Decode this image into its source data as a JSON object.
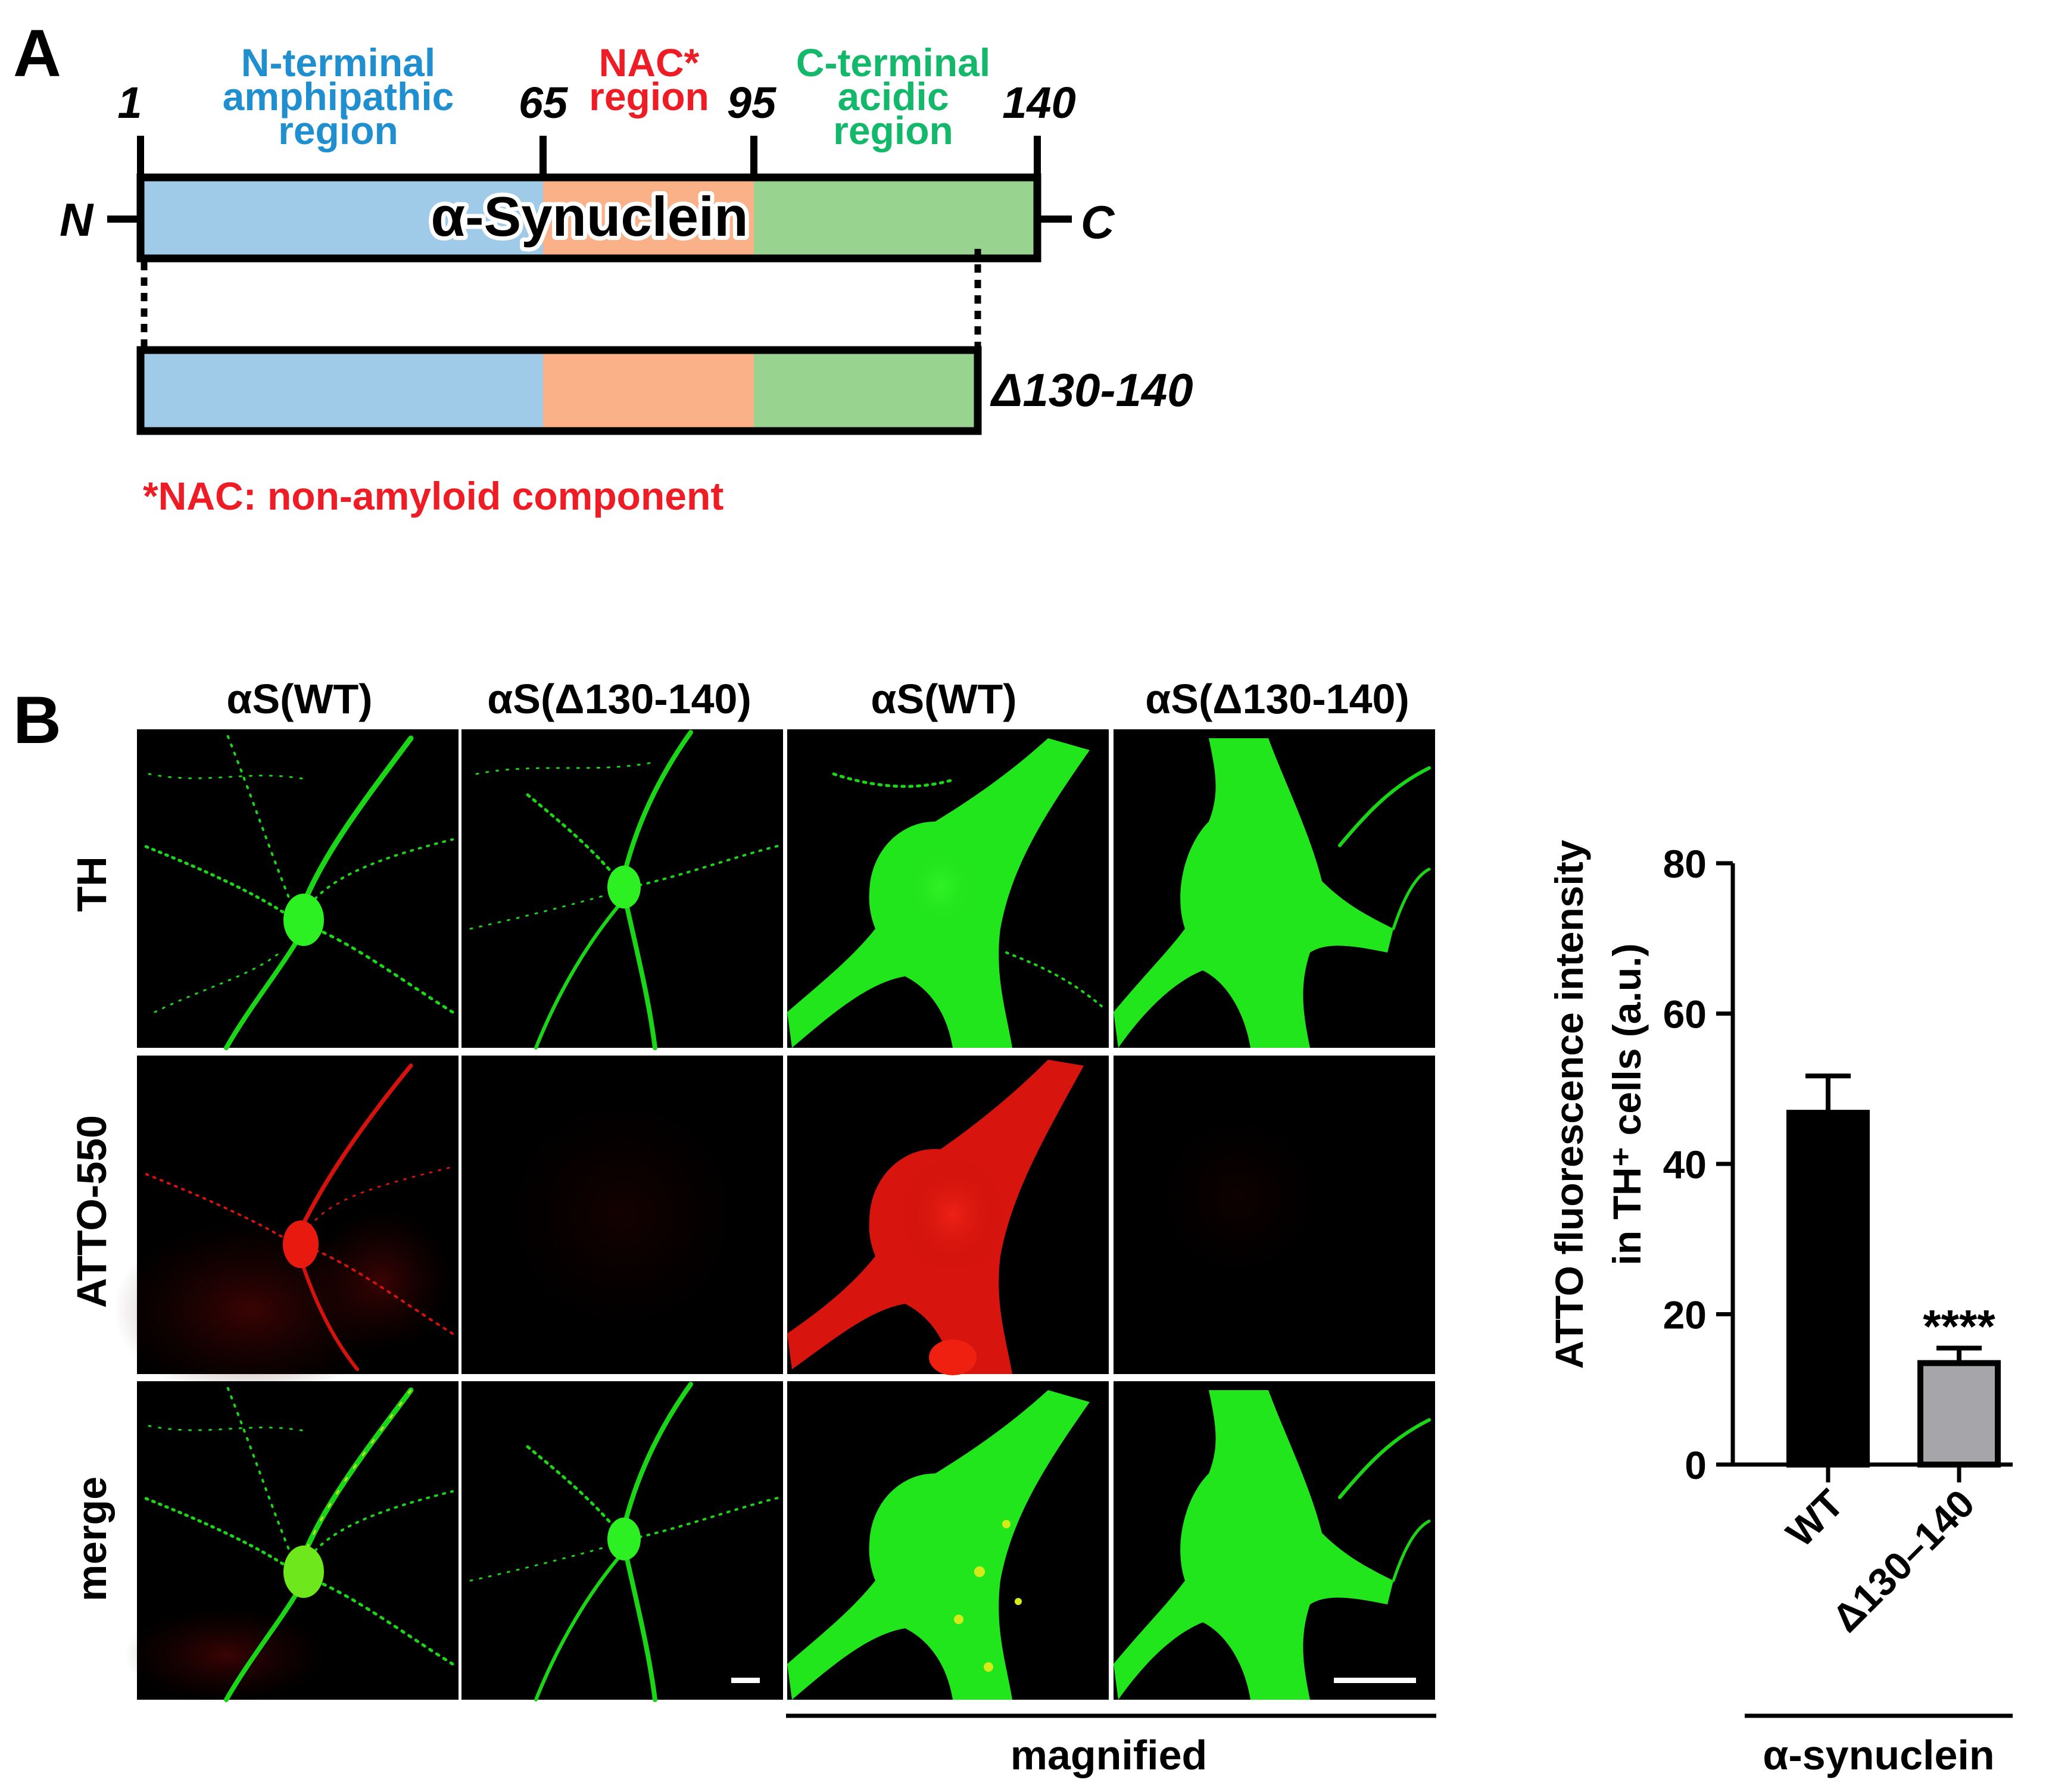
{
  "panel_a": {
    "letter": "A",
    "positions": [
      "1",
      "65",
      "95",
      "140"
    ],
    "regions": {
      "n_terminal": [
        "N-terminal",
        "amphipathic",
        "region"
      ],
      "nac": [
        "NAC*",
        "region"
      ],
      "c_terminal": [
        "C-terminal",
        "acidic",
        "region"
      ]
    },
    "protein_name": "α-Synuclein",
    "n_label": "N",
    "c_label": "C",
    "mutant_label": "Δ130-140",
    "footnote": "*NAC: non-amyloid component",
    "colors": {
      "n_terminal": "#9fcbe9",
      "nac": "#fbb187",
      "c_terminal": "#98d48f",
      "n_text": "#1f8fd0",
      "nac_text": "#ee1c24",
      "c_text": "#13b86b"
    }
  },
  "panel_b": {
    "letter": "B",
    "columns": [
      "αS(WT)",
      "αS(Δ130-140)",
      "αS(WT)",
      "αS(Δ130-140)"
    ],
    "rows": [
      "TH",
      "ATTO-550",
      "merge"
    ],
    "magnified_label": "magnified",
    "micrograph_colors": {
      "TH": "#22e61c",
      "ATTO-550": "#e3140e",
      "background": "#000000"
    }
  },
  "chart_data": {
    "type": "bar",
    "categories": [
      "WT",
      "Δ130–140"
    ],
    "values": [
      46.8,
      13.5
    ],
    "errors": [
      4.9,
      2.0
    ],
    "significance": [
      "",
      "****"
    ],
    "ylabel": "ATTO fluorescence intensity in TH⁺ cells (a.u.)",
    "ylabel_lines": [
      "ATTO fluorescence intensity",
      "in TH⁺ cells (a.u.)"
    ],
    "ylim": [
      0,
      80
    ],
    "yticks": [
      0,
      20,
      40,
      60,
      80
    ],
    "group_label": "α-synuclein",
    "bar_colors": [
      "#000000",
      "#a6a6aa"
    ],
    "grid": false
  }
}
